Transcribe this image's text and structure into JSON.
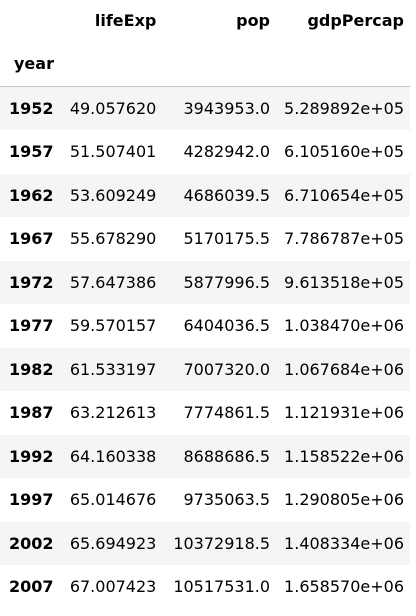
{
  "table": {
    "index_name": "year",
    "columns": [
      "lifeExp",
      "pop",
      "gdpPercap"
    ],
    "rows": [
      {
        "year": "1952",
        "lifeExp": "49.057620",
        "pop": "3943953.0",
        "gdpPercap": "5.289892e+05"
      },
      {
        "year": "1957",
        "lifeExp": "51.507401",
        "pop": "4282942.0",
        "gdpPercap": "6.105160e+05"
      },
      {
        "year": "1962",
        "lifeExp": "53.609249",
        "pop": "4686039.5",
        "gdpPercap": "6.710654e+05"
      },
      {
        "year": "1967",
        "lifeExp": "55.678290",
        "pop": "5170175.5",
        "gdpPercap": "7.786787e+05"
      },
      {
        "year": "1972",
        "lifeExp": "57.647386",
        "pop": "5877996.5",
        "gdpPercap": "9.613518e+05"
      },
      {
        "year": "1977",
        "lifeExp": "59.570157",
        "pop": "6404036.5",
        "gdpPercap": "1.038470e+06"
      },
      {
        "year": "1982",
        "lifeExp": "61.533197",
        "pop": "7007320.0",
        "gdpPercap": "1.067684e+06"
      },
      {
        "year": "1987",
        "lifeExp": "63.212613",
        "pop": "7774861.5",
        "gdpPercap": "1.121931e+06"
      },
      {
        "year": "1992",
        "lifeExp": "64.160338",
        "pop": "8688686.5",
        "gdpPercap": "1.158522e+06"
      },
      {
        "year": "1997",
        "lifeExp": "65.014676",
        "pop": "9735063.5",
        "gdpPercap": "1.290805e+06"
      },
      {
        "year": "2002",
        "lifeExp": "65.694923",
        "pop": "10372918.5",
        "gdpPercap": "1.408334e+06"
      },
      {
        "year": "2007",
        "lifeExp": "67.007423",
        "pop": "10517531.0",
        "gdpPercap": "1.658570e+06"
      }
    ]
  },
  "colors": {
    "striped_row": "#f5f5f5",
    "plain_row": "#ffffff",
    "header_rule": "#c8c8c8",
    "text": "#000000"
  }
}
